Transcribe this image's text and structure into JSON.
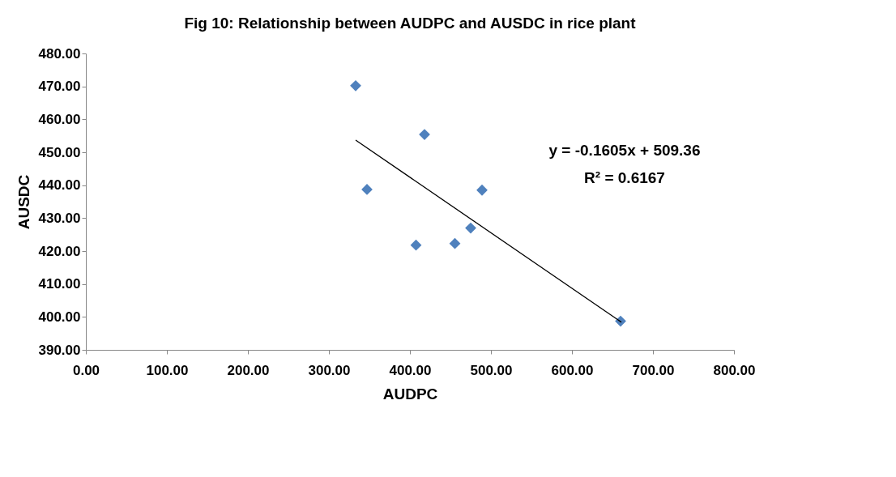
{
  "chart_data": {
    "type": "scatter",
    "title": "Fig  10: Relationship between AUDPC and AUSDC in rice plant",
    "xlabel": "AUDPC",
    "ylabel": "AUSDC",
    "xlim": [
      0,
      800
    ],
    "ylim": [
      390,
      480
    ],
    "xticks": [
      {
        "value": 0,
        "label": "0.00"
      },
      {
        "value": 100,
        "label": "100.00"
      },
      {
        "value": 200,
        "label": "200.00"
      },
      {
        "value": 300,
        "label": "300.00"
      },
      {
        "value": 400,
        "label": "400.00"
      },
      {
        "value": 500,
        "label": "500.00"
      },
      {
        "value": 600,
        "label": "600.00"
      },
      {
        "value": 700,
        "label": "700.00"
      },
      {
        "value": 800,
        "label": "800.00"
      }
    ],
    "yticks": [
      {
        "value": 390,
        "label": "390.00"
      },
      {
        "value": 400,
        "label": "400.00"
      },
      {
        "value": 410,
        "label": "410.00"
      },
      {
        "value": 420,
        "label": "420.00"
      },
      {
        "value": 430,
        "label": "430.00"
      },
      {
        "value": 440,
        "label": "440.00"
      },
      {
        "value": 450,
        "label": "450.00"
      },
      {
        "value": 460,
        "label": "460.00"
      },
      {
        "value": 470,
        "label": "470.00"
      },
      {
        "value": 480,
        "label": "480.00"
      }
    ],
    "grid": false,
    "marker": "diamond",
    "series": [
      {
        "color": "#4f81bd",
        "x": [
          333,
          418,
          347,
          489,
          475,
          455.5,
          407.5,
          660
        ],
        "values": [
          470.2,
          455.4,
          438.7,
          438.5,
          427,
          422.3,
          421.8,
          398.7
        ]
      },
      {
        "type": "line",
        "color": "#000000",
        "x": [
          333,
          661
        ],
        "values": [
          453.7,
          398.4
        ],
        "marker": "none",
        "line_style": "solid"
      }
    ],
    "annotations": [
      "y = -0.1605x + 509.36",
      "R² = 0.6167"
    ]
  }
}
